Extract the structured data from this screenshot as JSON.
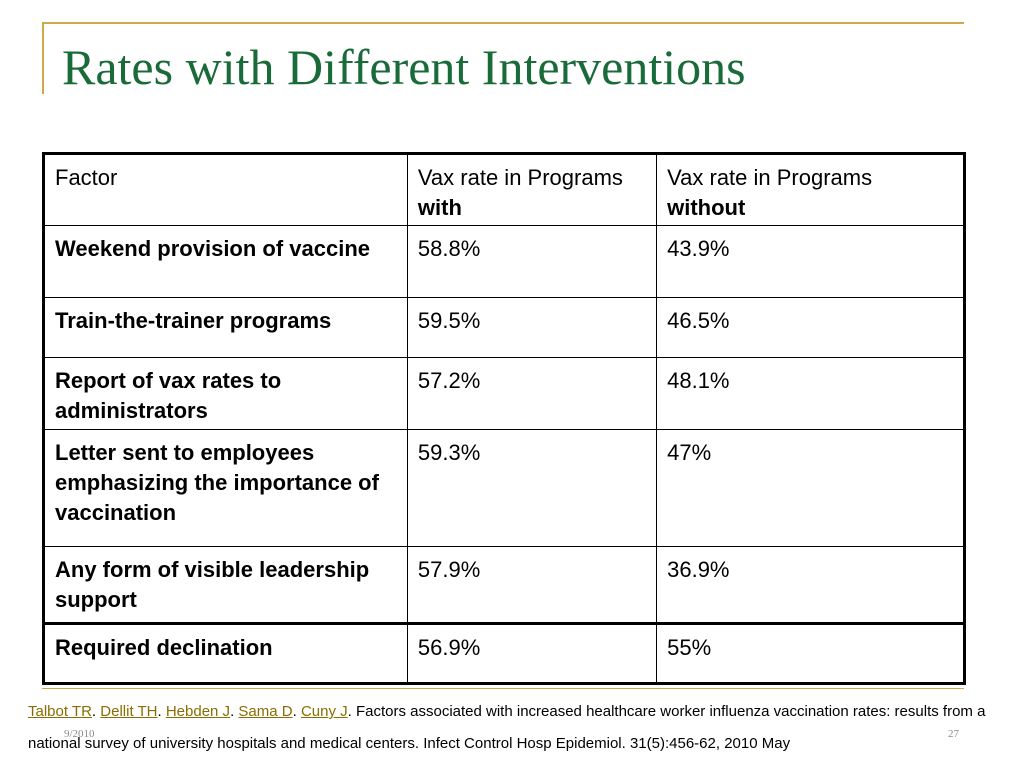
{
  "slide": {
    "title": "Rates with Different Interventions",
    "footer_date": "9/2010",
    "page_number": "27"
  },
  "table": {
    "headers": {
      "factor": "Factor",
      "with_prefix": "Vax rate in Programs ",
      "with_bold": "with",
      "without_prefix": "Vax rate in Programs ",
      "without_bold": "without"
    },
    "rows": [
      {
        "factor": "Weekend provision of vaccine",
        "with": "58.8%",
        "without": "43.9%"
      },
      {
        "factor": "Train-the-trainer programs",
        "with": "59.5%",
        "without": "46.5%"
      },
      {
        "factor": "Report of vax rates to administrators",
        "with": "57.2%",
        "without": "48.1%"
      },
      {
        "factor": "Letter sent to employees emphasizing the importance of vaccination",
        "with": "59.3%",
        "without": "47%"
      },
      {
        "factor": "Any form of visible leadership support",
        "with": "57.9%",
        "without": "36.9%"
      },
      {
        "factor": "Required declination",
        "with": "56.9%",
        "without": "55%"
      }
    ]
  },
  "citation": {
    "authors": [
      "Talbot TR",
      "Dellit TH",
      "Hebden J",
      "Sama D",
      "Cuny J"
    ],
    "separator": ". ",
    "text": ". Factors associated with increased healthcare worker influenza vaccination rates: results from a national survey of university hospitals and medical centers. Infect Control Hosp Epidemiol. 31(5):456-62, 2010 May"
  }
}
